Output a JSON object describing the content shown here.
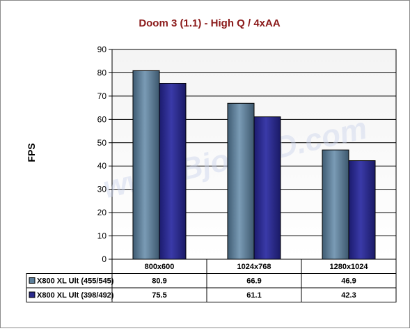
{
  "chart_data": {
    "type": "bar",
    "title": "Doom 3 (1.1) - High Q / 4xAA",
    "xlabel": "",
    "ylabel": "FPS",
    "ylim": [
      0,
      90
    ],
    "yticks": [
      0,
      10,
      20,
      30,
      40,
      50,
      60,
      70,
      80,
      90
    ],
    "grid": true,
    "legend": "table-below",
    "watermark": "www.Bjorn3D.com",
    "categories": [
      "800x600",
      "1024x768",
      "1280x1024"
    ],
    "series": [
      {
        "name": "X800 XL Ult (455/545)",
        "values": [
          80.9,
          66.9,
          46.9
        ],
        "color": "#5d7f9a"
      },
      {
        "name": "X800 XL Ult (398/492)",
        "values": [
          75.5,
          61.1,
          42.3
        ],
        "color": "#2a2a8c"
      }
    ],
    "colors": {
      "title": "#8b1a1a",
      "plot_top": "#f4f4f4",
      "plot_bottom": "#ffffff"
    }
  }
}
